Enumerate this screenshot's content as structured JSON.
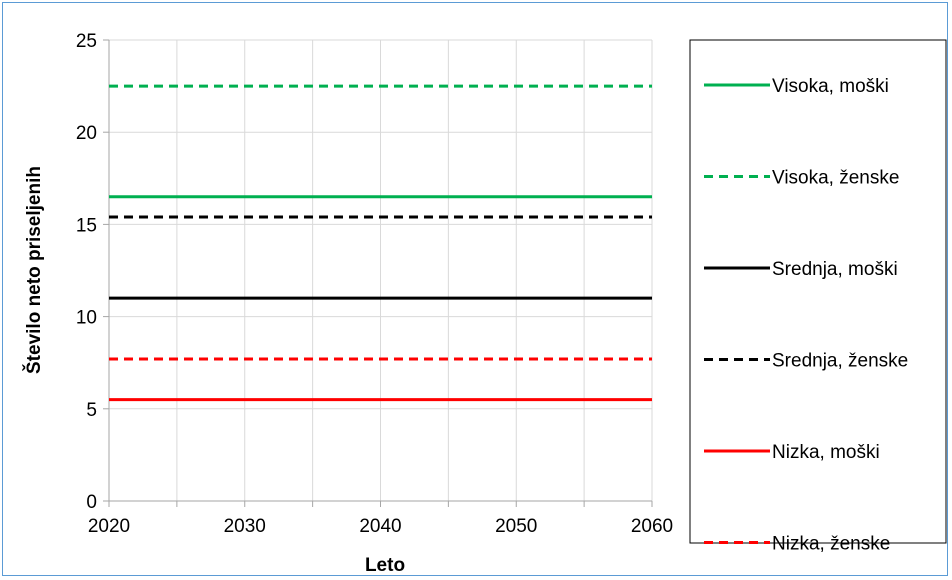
{
  "chart_data": {
    "type": "line",
    "title": "",
    "xlabel": "Leto",
    "ylabel": "Število neto priseljenih",
    "xlim": [
      2020,
      2060
    ],
    "ylim": [
      0,
      25
    ],
    "xticks": [
      2020,
      2030,
      2040,
      2050,
      2060
    ],
    "yticks": [
      0,
      5,
      10,
      15,
      20,
      25
    ],
    "x_gridlines": [
      2020,
      2025,
      2030,
      2035,
      2040,
      2045,
      2050,
      2055,
      2060
    ],
    "grid": true,
    "legend_position": "right",
    "x": [
      2020,
      2060
    ],
    "series": [
      {
        "name": "Visoka, moški",
        "values": [
          16.5,
          16.5
        ],
        "color": "#00b050",
        "dash": "solid"
      },
      {
        "name": "Visoka, ženske",
        "values": [
          22.5,
          22.5
        ],
        "color": "#00b050",
        "dash": "dashed"
      },
      {
        "name": "Srednja, moški",
        "values": [
          11.0,
          11.0
        ],
        "color": "#000000",
        "dash": "solid"
      },
      {
        "name": "Srednja, ženske",
        "values": [
          15.4,
          15.4
        ],
        "color": "#000000",
        "dash": "dashed"
      },
      {
        "name": "Nizka, moški",
        "values": [
          5.5,
          5.5
        ],
        "color": "#ff0000",
        "dash": "solid"
      },
      {
        "name": "Nizka, ženske",
        "values": [
          7.7,
          7.7
        ],
        "color": "#ff0000",
        "dash": "dashed"
      }
    ]
  }
}
